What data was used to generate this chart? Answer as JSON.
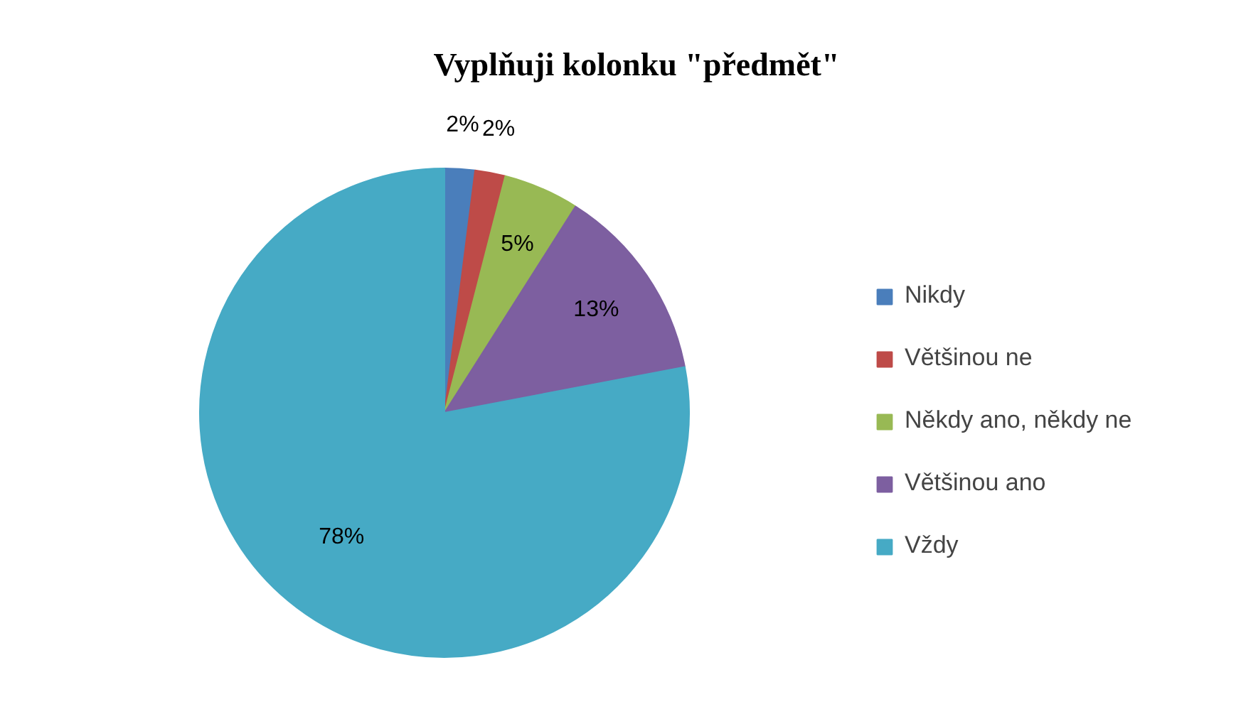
{
  "chart_data": {
    "type": "pie",
    "title": "Vyplňuji kolonku \"předmět\"",
    "categories": [
      "Nikdy",
      "Většinou ne",
      "Někdy ano, někdy ne",
      "Většinou ano",
      "Vždy"
    ],
    "values": [
      2,
      2,
      5,
      13,
      78
    ],
    "colors": [
      "#4a7ebb",
      "#be4b48",
      "#98b954",
      "#7d5fa0",
      "#46aac5"
    ],
    "value_labels": [
      "2%",
      "2%",
      "5%",
      "13%",
      "78%"
    ],
    "legend": "right"
  }
}
